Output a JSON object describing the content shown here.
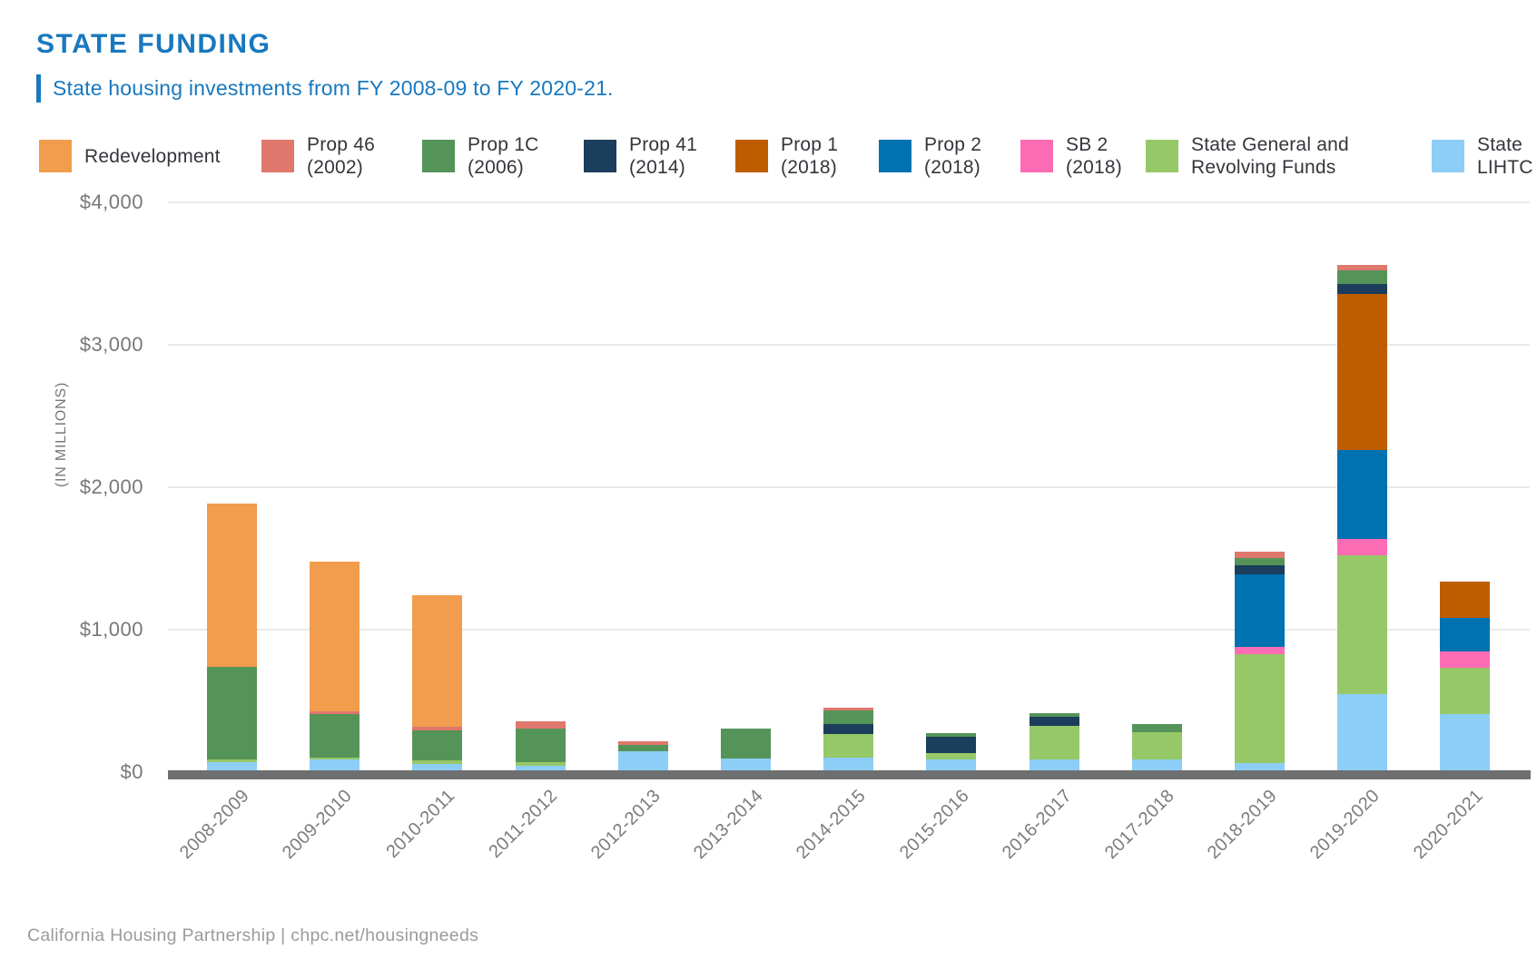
{
  "header": {
    "title": "STATE FUNDING",
    "subtitle": "State housing investments from FY 2008-09 to FY 2020-21."
  },
  "footer": {
    "attribution": "California Housing Partnership | chpc.net/housingneeds"
  },
  "legend": {
    "position": "top",
    "items": [
      {
        "key": "redevelopment",
        "lines": [
          "Redevelopment"
        ]
      },
      {
        "key": "prop46",
        "lines": [
          "Prop 46",
          "(2002)"
        ]
      },
      {
        "key": "prop1c",
        "lines": [
          "Prop 1C",
          "(2006)"
        ]
      },
      {
        "key": "prop41",
        "lines": [
          "Prop 41",
          "(2014)"
        ]
      },
      {
        "key": "prop1",
        "lines": [
          "Prop 1",
          "(2018)"
        ]
      },
      {
        "key": "prop2",
        "lines": [
          "Prop 2",
          "(2018)"
        ]
      },
      {
        "key": "sb2",
        "lines": [
          "SB 2",
          "(2018)"
        ]
      },
      {
        "key": "state_general",
        "lines": [
          "State General and",
          "Revolving Funds"
        ]
      },
      {
        "key": "lihtc",
        "lines": [
          "State",
          "LIHTC"
        ]
      }
    ]
  },
  "chart_data": {
    "type": "bar",
    "stacked": true,
    "title": "STATE FUNDING",
    "subtitle": "State housing investments from FY 2008-09 to FY 2020-21.",
    "units": "USD millions",
    "ylabel": "(IN MILLIONS)",
    "xlabel": "",
    "ylim": [
      0,
      4000
    ],
    "grid": true,
    "legend_position": "top",
    "y_ticks": [
      {
        "label": "$0",
        "value": 0
      },
      {
        "label": "$1,000",
        "value": 1000
      },
      {
        "label": "$2,000",
        "value": 2000
      },
      {
        "label": "$3,000",
        "value": 3000
      },
      {
        "label": "$4,000",
        "value": 4000
      }
    ],
    "categories": [
      "2008-2009",
      "2009-2010",
      "2010-2011",
      "2011-2012",
      "2012-2013",
      "2013-2014",
      "2014-2015",
      "2015-2016",
      "2016-2017",
      "2017-2018",
      "2018-2019",
      "2019-2020",
      "2020-2021"
    ],
    "series": [
      {
        "key": "lihtc",
        "name": "State LIHTC",
        "color": "#8DCEF6",
        "values": [
          70,
          90,
          55,
          45,
          145,
          95,
          100,
          90,
          90,
          90,
          65,
          550,
          410
        ]
      },
      {
        "key": "state_general",
        "name": "State General and Revolving Funds",
        "color": "#96C868",
        "values": [
          20,
          15,
          25,
          25,
          0,
          0,
          170,
          45,
          235,
          190,
          760,
          975,
          325
        ]
      },
      {
        "key": "sb2",
        "name": "SB 2 (2018)",
        "color": "#FC6CB4",
        "values": [
          0,
          0,
          0,
          0,
          0,
          0,
          0,
          0,
          0,
          0,
          55,
          115,
          115
        ]
      },
      {
        "key": "prop2",
        "name": "Prop 2 (2018)",
        "color": "#0071B1",
        "values": [
          0,
          0,
          0,
          0,
          0,
          0,
          0,
          0,
          0,
          0,
          510,
          620,
          235
        ]
      },
      {
        "key": "prop1",
        "name": "Prop 1 (2018)",
        "color": "#BE5D00",
        "values": [
          0,
          0,
          0,
          0,
          0,
          0,
          0,
          0,
          0,
          0,
          0,
          1095,
          255
        ]
      },
      {
        "key": "prop41",
        "name": "Prop 41 (2014)",
        "color": "#1B3E5C",
        "values": [
          0,
          0,
          0,
          0,
          0,
          0,
          65,
          115,
          65,
          0,
          65,
          75,
          0
        ]
      },
      {
        "key": "prop1c",
        "name": "Prop 1C (2006)",
        "color": "#559459",
        "values": [
          650,
          300,
          210,
          235,
          45,
          210,
          100,
          25,
          25,
          55,
          50,
          90,
          0
        ]
      },
      {
        "key": "prop46",
        "name": "Prop 46 (2002)",
        "color": "#DF776D",
        "values": [
          0,
          20,
          30,
          50,
          25,
          0,
          20,
          0,
          0,
          0,
          40,
          40,
          0
        ]
      },
      {
        "key": "redevelopment",
        "name": "Redevelopment",
        "color": "#F29D4E",
        "values": [
          1145,
          1055,
          925,
          0,
          0,
          0,
          0,
          0,
          0,
          0,
          0,
          0,
          0
        ]
      }
    ]
  }
}
